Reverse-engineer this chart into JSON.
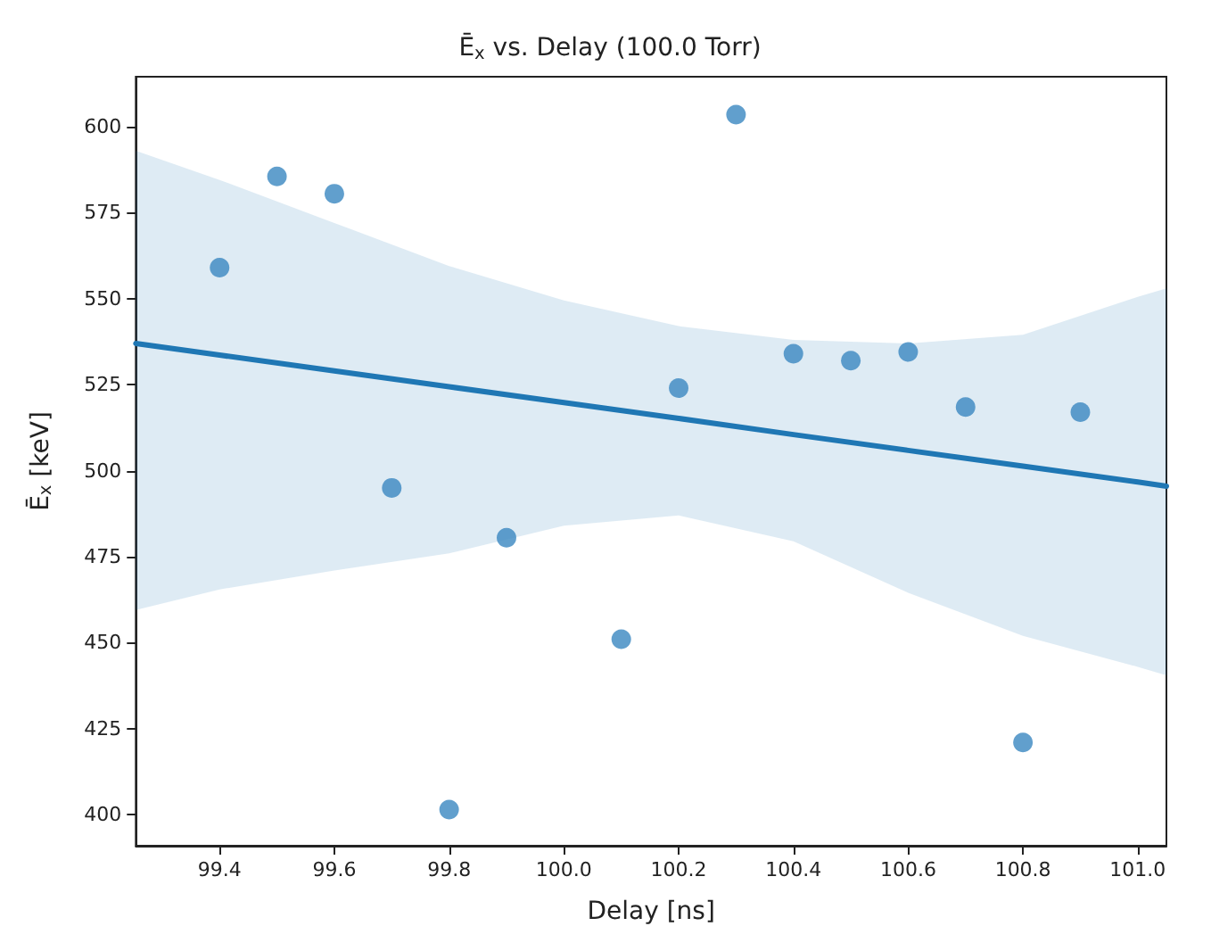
{
  "chart_data": {
    "type": "scatter",
    "title": "Ē$_{x}$ vs. Delay (100.0 Torr)",
    "xlabel": "Delay [ns]",
    "ylabel": "Ē$_{x}$ [keV]",
    "x": [
      99.4,
      99.5,
      99.6,
      99.7,
      99.8,
      99.9,
      100.1,
      100.2,
      100.3,
      100.4,
      100.5,
      100.6,
      100.7,
      100.8,
      100.9
    ],
    "series": [
      {
        "color": "#3a87c0",
        "marker": "circle",
        "values": [
          559,
          585.5,
          580.5,
          495,
          401.5,
          480.5,
          451,
          524,
          603.5,
          534,
          532,
          534.5,
          518.5,
          421,
          517
        ]
      },
      {
        "type": "line",
        "color": "#1f77b4",
        "marker": "none",
        "x": [
          99.254,
          99.4,
          99.6,
          99.8,
          100.0,
          100.2,
          100.4,
          100.6,
          100.8,
          101.0,
          101.05
        ],
        "values": [
          537,
          533.6,
          529,
          524.4,
          519.8,
          515.2,
          510.5,
          505.9,
          501.3,
          496.7,
          495.5
        ],
        "lower": [
          459.5,
          465.5,
          471,
          476,
          484,
          487,
          479.5,
          464.5,
          452,
          443,
          440.5
        ],
        "upper": [
          593,
          584.5,
          572,
          559.5,
          549.5,
          542,
          538,
          537,
          539.5,
          550.5,
          553
        ]
      }
    ],
    "xlim": [
      99.254,
      101.05
    ],
    "ylim": [
      391,
      614.5
    ],
    "xticks": [
      99.4,
      99.6,
      99.8,
      {
        "value": 100,
        "label": "100.0"
      },
      100.2,
      100.4,
      100.6,
      100.8,
      {
        "value": 101,
        "label": "101.0"
      }
    ],
    "yticks": [
      400,
      425,
      450,
      475,
      500,
      525,
      550,
      575,
      600
    ],
    "grid": false
  }
}
